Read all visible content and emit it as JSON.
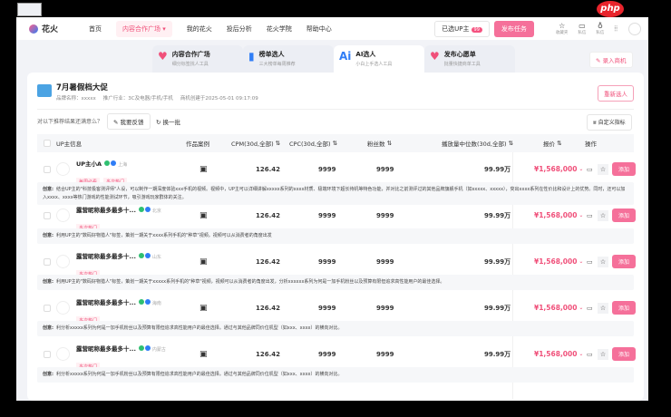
{
  "nav": {
    "logo": "花火",
    "items": [
      "首页",
      "内容合作广场",
      "我的花火",
      "投后分析",
      "花火学院",
      "帮助中心"
    ],
    "selected_up": "已选UP主",
    "selected_count": "99",
    "publish": "发布任务",
    "icons": [
      {
        "name": "star-icon",
        "label": "收藏夹"
      },
      {
        "name": "message-icon",
        "label": "私信"
      },
      {
        "name": "bell-icon",
        "label": "私信"
      }
    ]
  },
  "watermark": "php",
  "tabs": [
    {
      "title": "内容合作广场",
      "sub": "细分标签找人工具"
    },
    {
      "title": "榜单选人",
      "sub": "三大榜单每周推荐"
    },
    {
      "title": "AI选人",
      "sub": "小白上手选人工具"
    },
    {
      "title": "发布心愿单",
      "sub": "批量快捷商单工具"
    }
  ],
  "record_button": "录入商机",
  "campaign": {
    "title": "7月暑假档大促",
    "brand": "品牌名称：xxxxx",
    "industry": "推广行业：3C及电器/手机/手机",
    "created": "商机创建于2025-05-01 09:17:09",
    "reselect": "重新选人"
  },
  "feedback": {
    "question": "对以下推荐结果还满意么？",
    "feedback_btn": "我要反馈",
    "swap": "换一批",
    "custom": "自定义指标"
  },
  "columns": [
    "UP主信息",
    "作品案例",
    "CPM(30d,全部)",
    "CPC(30d,全部)",
    "粉丝数",
    "播放量中位数(30d,全部)",
    "报价",
    "操作"
  ],
  "colors": {
    "accent": "#f5709a",
    "price": "#f0507a"
  },
  "rows": [
    {
      "name": "UP主小A",
      "loc": "上海",
      "tags": [
        "每周必看",
        "多次热门"
      ],
      "cpm": "126.42",
      "cpc": "9999",
      "fans": "9999",
      "play": "99.99万",
      "price": "¥1,568,000",
      "add": "添加",
      "creative_label": "创意:",
      "creative": "结合UP主的\"科技极客测评师\"人设，可以制作一期深度体验xxx手机的视频。视频中，UP主可以详细讲解xxxxx系列的xxxx材质、极端环境下超长待机等特色功能，并对比之前测评过的其他品牌旗舰手机（如xxxxx、xxxxx），突出xxxx系列在性价比和设计上的优势。同时，还可以加入xxxx、xxxx等热门游戏的性能测试环节，吸引游戏玩家群体的关注。"
    },
    {
      "name": "露营昵称最多最多十...",
      "loc": "北京",
      "tags": [
        "多次热门"
      ],
      "cpm": "126.42",
      "cpc": "9999",
      "fans": "9999",
      "play": "99.99万",
      "price": "¥1,568,000",
      "add": "添加",
      "creative_label": "创意:",
      "creative": "利用UP主的\"数码好物猎人\"标签，策划一期关于xxxx系列手机的\"种草\"视频。视频可以从消费者的角度出发"
    },
    {
      "name": "露营昵称最多最多十...",
      "loc": "山东",
      "tags": [
        "多次热门"
      ],
      "cpm": "126.42",
      "cpc": "9999",
      "fans": "9999",
      "play": "99.99万",
      "price": "¥1,568,000",
      "add": "添加",
      "creative_label": "创意:",
      "creative": "利用UP主的\"数码好物猎人\"标签，策划一期关于xxxxx系列手机的\"种草\"视频，视频可以从消费者的角度出发，分析xxxxxx系列为何是一加手机粉丝以及预算有限但追求高性能用户的最佳选择。"
    },
    {
      "name": "露营昵称最多最多十...",
      "loc": "海南",
      "tags": [
        "多次热门"
      ],
      "cpm": "126.42",
      "cpc": "9999",
      "fans": "9999",
      "play": "99.99万",
      "price": "¥1,568,000",
      "add": "添加",
      "creative_label": "创意:",
      "creative": "利分析xxxxx系列为何是一加手机粉丝以及预算有限但追求高性能用户的最佳选择。通过与其他品牌同价位机型（如xxx、xxxx）的横向对比。"
    },
    {
      "name": "露营昵称最多最多十...",
      "loc": "内蒙古",
      "tags": [
        "多次热门"
      ],
      "cpm": "126.42",
      "cpc": "9999",
      "fans": "9999",
      "play": "99.99万",
      "price": "¥1,568,000",
      "add": "添加",
      "creative_label": "创意:",
      "creative": "利分析xxxxx系列为何是一加手机粉丝以及预算有限但追求高性能用户的最佳选择。通过与其他品牌同价位机型（如xxx、xxxx）的横向对比。"
    }
  ]
}
